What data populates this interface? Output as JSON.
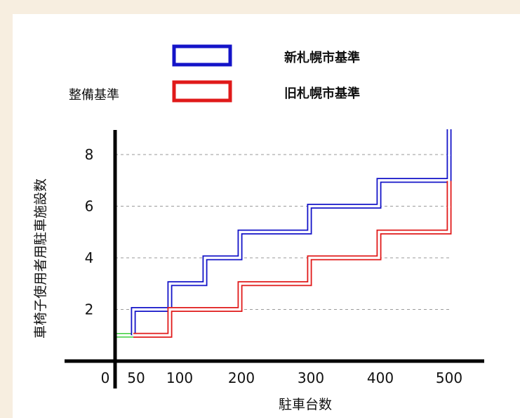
{
  "chart_data": {
    "type": "line",
    "step": true,
    "xlabel": "駐車台数",
    "ylabel": "車椅子使用者用駐車施設数",
    "xticks": [
      {
        "label": "0",
        "value": 0
      },
      {
        "label": "50",
        "value": 50
      },
      {
        "label": "100",
        "value": 100
      },
      {
        "label": "200",
        "value": 200
      },
      {
        "label": "300",
        "value": 300
      },
      {
        "label": "400",
        "value": 400
      },
      {
        "label": "500",
        "value": 500
      }
    ],
    "yticks": [
      "2",
      "4",
      "6",
      "8"
    ],
    "ylim": [
      0,
      8
    ],
    "grid": "horizontal-dashed",
    "side_label": "整備基準",
    "series": [
      {
        "name": "新札幌市基準",
        "color": "#1414c8",
        "steps": [
          [
            50,
            2
          ],
          [
            100,
            3
          ],
          [
            150,
            4
          ],
          [
            200,
            5
          ],
          [
            300,
            6
          ],
          [
            400,
            7
          ],
          [
            500,
            8
          ]
        ]
      },
      {
        "name": "旧札幌市基準",
        "color": "#e01a1a",
        "steps": [
          [
            50,
            1
          ],
          [
            100,
            2
          ],
          [
            200,
            3
          ],
          [
            300,
            4
          ],
          [
            400,
            5
          ],
          [
            500,
            6
          ]
        ]
      }
    ],
    "connector": {
      "color": "#3ecf3e",
      "x": [
        0,
        50
      ],
      "y": 1
    }
  }
}
